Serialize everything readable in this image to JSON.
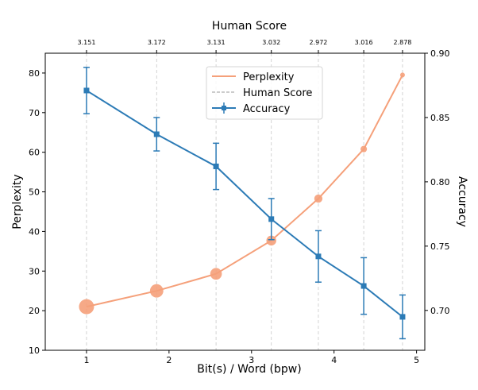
{
  "chart_data": {
    "type": "line",
    "title": "Human Score",
    "xlabel": "Bit(s) / Word (bpw)",
    "ylabel": "Perplexity",
    "ylabel_right": "Accuracy",
    "xlim": [
      0.5,
      5.1
    ],
    "ylim": [
      10,
      85
    ],
    "ylim_right": [
      0.669,
      0.9
    ],
    "x_ticks": [
      1,
      2,
      3,
      4,
      5
    ],
    "y_ticks": [
      10,
      20,
      30,
      40,
      50,
      60,
      70,
      80
    ],
    "y_ticks_right": [
      "0.70",
      "0.75",
      "0.80",
      "0.85",
      "0.90"
    ],
    "y_ticks_right_values": [
      0.7,
      0.75,
      0.8,
      0.85,
      0.9
    ],
    "top_ticks": {
      "x": [
        1.0,
        1.85,
        2.57,
        3.24,
        3.81,
        4.36,
        4.83
      ],
      "labels": [
        "3.151",
        "3.172",
        "3.131",
        "3.032",
        "2.972",
        "3.016",
        "2.878"
      ]
    },
    "legend": {
      "position": "top-center",
      "entries": [
        "Perplexity",
        "Human Score",
        "Accuracy"
      ]
    },
    "series": [
      {
        "name": "Perplexity",
        "axis": "left",
        "color": "#f5a07a",
        "x": [
          1.0,
          1.85,
          2.57,
          3.24,
          3.81,
          4.36,
          4.83
        ],
        "y": [
          21,
          25,
          29.3,
          37.7,
          48.3,
          60.8,
          79.5
        ]
      },
      {
        "name": "Accuracy",
        "axis": "right",
        "color": "#2c7bb6",
        "x": [
          1.0,
          1.85,
          2.57,
          3.24,
          3.81,
          4.36,
          4.83
        ],
        "y": [
          0.871,
          0.837,
          0.812,
          0.771,
          0.742,
          0.719,
          0.695
        ],
        "err": [
          0.018,
          0.013,
          0.018,
          0.016,
          0.02,
          0.022,
          0.017
        ]
      }
    ],
    "grid": false
  }
}
